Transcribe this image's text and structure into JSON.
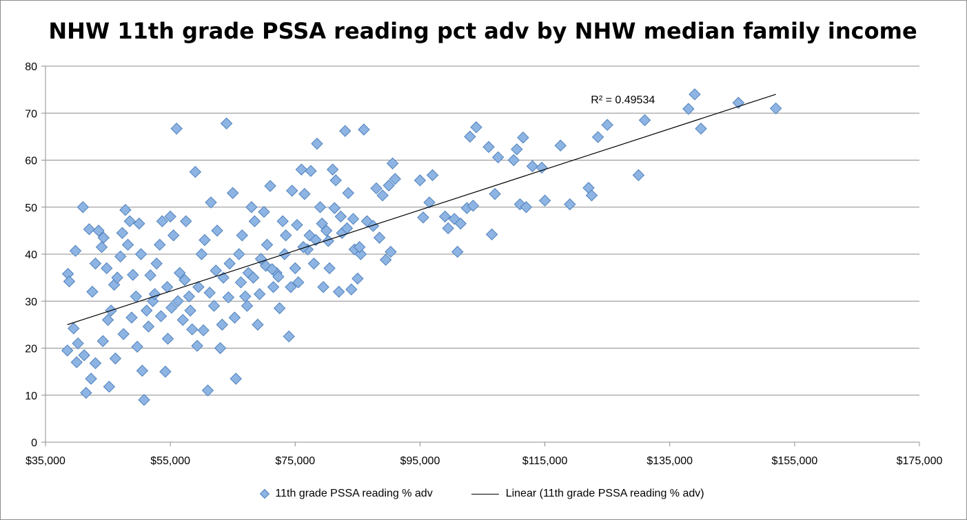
{
  "chart_data": {
    "type": "scatter",
    "title": "NHW 11th grade PSSA reading pct adv by NHW median family income",
    "xlabel": "",
    "ylabel": "",
    "xlim": [
      35000,
      175000
    ],
    "ylim": [
      0,
      80
    ],
    "x_ticks": [
      "$35,000",
      "$55,000",
      "$75,000",
      "$95,000",
      "$115,000",
      "$135,000",
      "$155,000",
      "$175,000"
    ],
    "y_ticks": [
      "0",
      "10",
      "20",
      "30",
      "40",
      "50",
      "60",
      "70",
      "80"
    ],
    "grid": true,
    "legend_position": "bottom",
    "marker_color": "#8db4e2",
    "marker_edge_color": "#4f81bd",
    "series": [
      {
        "name": "11th grade PSSA reading % adv",
        "marker": "diamond",
        "points": [
          [
            38600,
            35.8
          ],
          [
            38800,
            34.2
          ],
          [
            39500,
            24.2
          ],
          [
            39800,
            40.7
          ],
          [
            38500,
            19.5
          ],
          [
            40200,
            21
          ],
          [
            41000,
            50
          ],
          [
            41500,
            10.5
          ],
          [
            42000,
            45.3
          ],
          [
            42500,
            32
          ],
          [
            43000,
            38
          ],
          [
            43500,
            45
          ],
          [
            44000,
            41.5
          ],
          [
            44300,
            43.5
          ],
          [
            44800,
            37
          ],
          [
            45200,
            11.8
          ],
          [
            45500,
            28
          ],
          [
            46000,
            33.5
          ],
          [
            46500,
            35
          ],
          [
            47000,
            39.5
          ],
          [
            47300,
            44.5
          ],
          [
            47800,
            49.4
          ],
          [
            48200,
            42
          ],
          [
            48500,
            47
          ],
          [
            49000,
            35.6
          ],
          [
            49500,
            31
          ],
          [
            50000,
            46.5
          ],
          [
            50300,
            40
          ],
          [
            50800,
            9
          ],
          [
            51200,
            28
          ],
          [
            51800,
            35.5
          ],
          [
            52200,
            30
          ],
          [
            52800,
            38
          ],
          [
            53300,
            42
          ],
          [
            53700,
            47
          ],
          [
            54200,
            15
          ],
          [
            54600,
            22
          ],
          [
            55000,
            48
          ],
          [
            55500,
            44
          ],
          [
            56000,
            66.7
          ],
          [
            56500,
            36
          ],
          [
            57000,
            26
          ],
          [
            57500,
            47
          ],
          [
            58000,
            31
          ],
          [
            58500,
            24
          ],
          [
            59000,
            57.5
          ],
          [
            59500,
            33
          ],
          [
            60000,
            40
          ],
          [
            60500,
            43
          ],
          [
            61000,
            11
          ],
          [
            61500,
            51
          ],
          [
            62000,
            29
          ],
          [
            62500,
            45
          ],
          [
            63000,
            20
          ],
          [
            63500,
            35
          ],
          [
            64000,
            67.8
          ],
          [
            64500,
            38
          ],
          [
            65000,
            53
          ],
          [
            65500,
            13.5
          ],
          [
            66000,
            40
          ],
          [
            66500,
            44
          ],
          [
            67000,
            31
          ],
          [
            67500,
            36
          ],
          [
            68000,
            50
          ],
          [
            68500,
            47
          ],
          [
            69000,
            25
          ],
          [
            69500,
            39
          ],
          [
            70000,
            49
          ],
          [
            70500,
            42
          ],
          [
            71000,
            54.5
          ],
          [
            71500,
            33
          ],
          [
            72000,
            36
          ],
          [
            72500,
            28.5
          ],
          [
            73000,
            47
          ],
          [
            73500,
            44
          ],
          [
            74000,
            22.5
          ],
          [
            74500,
            53.5
          ],
          [
            75000,
            37
          ],
          [
            75500,
            34
          ],
          [
            76000,
            58
          ],
          [
            76500,
            52.8
          ],
          [
            77000,
            41
          ],
          [
            77500,
            57.7
          ],
          [
            78000,
            38
          ],
          [
            78500,
            63.5
          ],
          [
            79000,
            50
          ],
          [
            79500,
            33
          ],
          [
            80000,
            45
          ],
          [
            80500,
            37
          ],
          [
            81000,
            58
          ],
          [
            81500,
            55.7
          ],
          [
            82000,
            32
          ],
          [
            82500,
            44.5
          ],
          [
            83000,
            66.2
          ],
          [
            83500,
            53
          ],
          [
            84000,
            32.5
          ],
          [
            84500,
            41
          ],
          [
            85000,
            34.8
          ],
          [
            85500,
            40
          ],
          [
            86000,
            66.5
          ],
          [
            86500,
            47
          ],
          [
            87500,
            46
          ],
          [
            88000,
            54
          ],
          [
            88500,
            43.5
          ],
          [
            89000,
            52.5
          ],
          [
            89500,
            38.8
          ],
          [
            90000,
            54.6
          ],
          [
            90300,
            40.5
          ],
          [
            90600,
            59.3
          ],
          [
            91000,
            56
          ],
          [
            95000,
            55.7
          ],
          [
            95500,
            47.8
          ],
          [
            96500,
            51
          ],
          [
            97000,
            56.8
          ],
          [
            99000,
            48
          ],
          [
            99500,
            45.5
          ],
          [
            100500,
            47.5
          ],
          [
            101000,
            40.5
          ],
          [
            101500,
            46.5
          ],
          [
            102500,
            49.8
          ],
          [
            103000,
            65
          ],
          [
            103500,
            50.3
          ],
          [
            104000,
            67
          ],
          [
            106000,
            62.8
          ],
          [
            106500,
            44.2
          ],
          [
            107000,
            52.8
          ],
          [
            107500,
            60.6
          ],
          [
            110000,
            60
          ],
          [
            110500,
            62.3
          ],
          [
            111000,
            50.6
          ],
          [
            111500,
            64.8
          ],
          [
            112000,
            50
          ],
          [
            113000,
            58.7
          ],
          [
            114500,
            58.4
          ],
          [
            115000,
            51.4
          ],
          [
            117500,
            63.1
          ],
          [
            119000,
            50.6
          ],
          [
            122000,
            54.1
          ],
          [
            122500,
            52.5
          ],
          [
            123500,
            64.9
          ],
          [
            125000,
            67.5
          ],
          [
            130000,
            56.8
          ],
          [
            131000,
            68.5
          ],
          [
            138000,
            70.9
          ],
          [
            139000,
            74
          ],
          [
            140000,
            66.7
          ],
          [
            146000,
            72.2
          ],
          [
            152000,
            71
          ],
          [
            40000,
            17
          ],
          [
            41200,
            18.5
          ],
          [
            42300,
            13.5
          ],
          [
            43000,
            16.8
          ],
          [
            44200,
            21.5
          ],
          [
            45000,
            26
          ],
          [
            46200,
            17.8
          ],
          [
            47500,
            23
          ],
          [
            48800,
            26.5
          ],
          [
            49700,
            20.3
          ],
          [
            50500,
            15.2
          ],
          [
            51500,
            24.6
          ],
          [
            52500,
            31.5
          ],
          [
            53500,
            26.8
          ],
          [
            54500,
            33
          ],
          [
            55200,
            28.6
          ],
          [
            56200,
            30
          ],
          [
            57300,
            34.5
          ],
          [
            58200,
            28
          ],
          [
            59300,
            20.5
          ],
          [
            60300,
            23.8
          ],
          [
            61300,
            31.8
          ],
          [
            62300,
            36.5
          ],
          [
            63300,
            25
          ],
          [
            64300,
            30.8
          ],
          [
            65300,
            26.5
          ],
          [
            66300,
            34
          ],
          [
            67300,
            29
          ],
          [
            68300,
            35
          ],
          [
            69300,
            31.5
          ],
          [
            70300,
            37.5
          ],
          [
            71300,
            36.8
          ],
          [
            72300,
            35.2
          ],
          [
            73300,
            40
          ],
          [
            74300,
            33
          ],
          [
            75300,
            46.2
          ],
          [
            76300,
            41.5
          ],
          [
            77300,
            44
          ],
          [
            78300,
            43
          ],
          [
            79300,
            46.5
          ],
          [
            80300,
            42.8
          ],
          [
            81300,
            49.8
          ],
          [
            82300,
            48
          ],
          [
            83300,
            45.5
          ],
          [
            84300,
            47.5
          ],
          [
            85300,
            41.5
          ]
        ]
      }
    ],
    "trendline": {
      "name": "Linear (11th grade PSSA reading % adv)",
      "type": "linear",
      "x": [
        38500,
        152000
      ],
      "y": [
        25,
        74
      ],
      "r2_label": "R² = 0.49534"
    }
  }
}
